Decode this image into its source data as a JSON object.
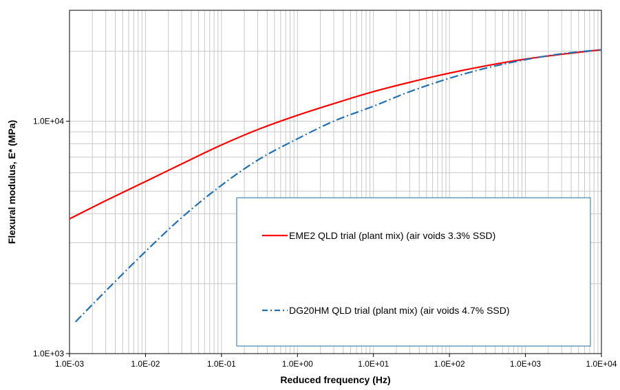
{
  "chart_data": {
    "type": "line",
    "title": "",
    "xlabel": "Reduced frequency (Hz)",
    "ylabel": "Flexural modulus, E* (MPa)",
    "x_scale": "log",
    "y_scale": "log",
    "xlim": [
      0.001,
      10000
    ],
    "ylim": [
      1000,
      30000
    ],
    "x_ticks": [
      0.001,
      0.01,
      0.1,
      1,
      10,
      100,
      1000,
      10000
    ],
    "x_tick_labels": [
      "1.0E-03",
      "1.0E-02",
      "1.0E-01",
      "1.0E+00",
      "1.0E+01",
      "1.0E+02",
      "1.0E+03",
      "1.0E+04"
    ],
    "y_ticks": [
      1000,
      10000
    ],
    "y_tick_labels": [
      "1.0E+03",
      "1.0E+04"
    ],
    "grid": true,
    "legend_position": "lower-right",
    "series": [
      {
        "name": "EME2 QLD trial (plant mix) (air voids 3.3% SSD)",
        "color": "#ff0000",
        "style": "solid",
        "x": [
          0.001,
          0.003,
          0.01,
          0.03,
          0.1,
          0.3,
          1,
          3,
          10,
          30,
          100,
          300,
          1000,
          3000,
          10000
        ],
        "y": [
          3800,
          4550,
          5500,
          6550,
          7900,
          9200,
          10600,
          11900,
          13400,
          14700,
          16100,
          17300,
          18500,
          19400,
          20300
        ]
      },
      {
        "name": "DG20HM QLD trial (plant mix) (air voids 4.7% SSD)",
        "color": "#1f6fb5",
        "style": "dash-dot",
        "x": [
          0.0012,
          0.003,
          0.01,
          0.03,
          0.1,
          0.3,
          1,
          3,
          10,
          30,
          100,
          300,
          1000,
          3000,
          10000
        ],
        "y": [
          1370,
          1860,
          2750,
          3850,
          5300,
          6800,
          8400,
          10000,
          11600,
          13400,
          15300,
          16900,
          18400,
          19500,
          20300
        ]
      }
    ]
  }
}
